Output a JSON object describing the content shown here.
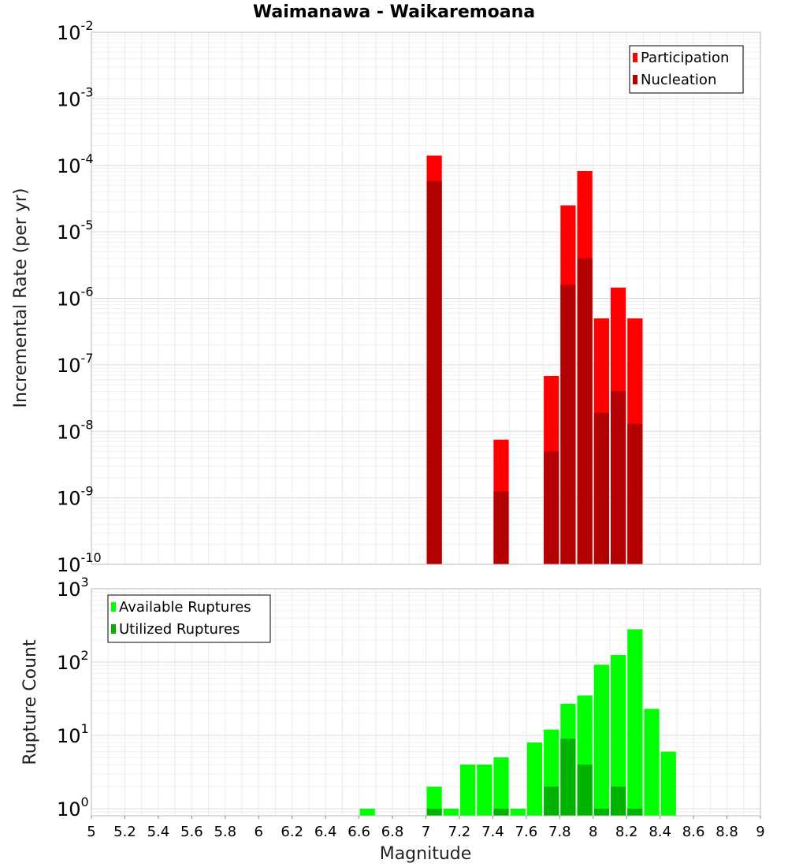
{
  "chart_data": [
    {
      "type": "bar",
      "title": "Waimanawa - Waikaremoana",
      "xlabel": "Magnitude",
      "ylabel": "Incremental Rate (per yr)",
      "yscale": "log",
      "xlim": [
        5,
        9
      ],
      "ylim": [
        1e-10,
        0.01
      ],
      "y_tick_exponents": [
        -10,
        -9,
        -8,
        -7,
        -6,
        -5,
        -4,
        -3,
        -2
      ],
      "grid": true,
      "legend_position": "top-right",
      "bin_width": 0.1,
      "series": [
        {
          "name": "Participation",
          "color": "#ff0000",
          "points": [
            {
              "x": 7.05,
              "y": 0.00014
            },
            {
              "x": 7.45,
              "y": 7.5e-09
            },
            {
              "x": 7.75,
              "y": 6.8e-08
            },
            {
              "x": 7.85,
              "y": 2.5e-05
            },
            {
              "x": 7.95,
              "y": 8.2e-05
            },
            {
              "x": 8.05,
              "y": 5e-07
            },
            {
              "x": 8.15,
              "y": 1.45e-06
            },
            {
              "x": 8.25,
              "y": 5e-07
            }
          ]
        },
        {
          "name": "Nucleation",
          "color": "#b30000",
          "points": [
            {
              "x": 7.05,
              "y": 5.8e-05
            },
            {
              "x": 7.45,
              "y": 1.25e-09
            },
            {
              "x": 7.75,
              "y": 5e-09
            },
            {
              "x": 7.85,
              "y": 1.6e-06
            },
            {
              "x": 7.95,
              "y": 4e-06
            },
            {
              "x": 8.05,
              "y": 1.9e-08
            },
            {
              "x": 8.15,
              "y": 4e-08
            },
            {
              "x": 8.25,
              "y": 1.3e-08
            }
          ]
        }
      ]
    },
    {
      "type": "bar",
      "xlabel": "Magnitude",
      "ylabel": "Rupture Count",
      "yscale": "log",
      "xlim": [
        5,
        9
      ],
      "ylim": [
        0.8,
        1000
      ],
      "y_tick_exponents": [
        0,
        1,
        2,
        3
      ],
      "x_ticks": [
        "5",
        "5.2",
        "5.4",
        "5.6",
        "5.8",
        "6",
        "6.2",
        "6.4",
        "6.6",
        "6.8",
        "7",
        "7.2",
        "7.4",
        "7.6",
        "7.8",
        "8",
        "8.2",
        "8.4",
        "8.6",
        "8.8",
        "9"
      ],
      "grid": true,
      "legend_position": "top-left",
      "bin_width": 0.1,
      "series": [
        {
          "name": "Available Ruptures",
          "color": "#00ff00",
          "points": [
            {
              "x": 6.65,
              "y": 1
            },
            {
              "x": 7.05,
              "y": 2
            },
            {
              "x": 7.15,
              "y": 1
            },
            {
              "x": 7.25,
              "y": 4
            },
            {
              "x": 7.35,
              "y": 4
            },
            {
              "x": 7.45,
              "y": 5
            },
            {
              "x": 7.55,
              "y": 1
            },
            {
              "x": 7.65,
              "y": 8
            },
            {
              "x": 7.75,
              "y": 12
            },
            {
              "x": 7.85,
              "y": 27
            },
            {
              "x": 7.95,
              "y": 35
            },
            {
              "x": 8.05,
              "y": 92
            },
            {
              "x": 8.15,
              "y": 125
            },
            {
              "x": 8.25,
              "y": 280
            },
            {
              "x": 8.35,
              "y": 23
            },
            {
              "x": 8.45,
              "y": 6
            }
          ]
        },
        {
          "name": "Utilized Ruptures",
          "color": "#00b300",
          "points": [
            {
              "x": 7.05,
              "y": 1
            },
            {
              "x": 7.45,
              "y": 1
            },
            {
              "x": 7.75,
              "y": 2
            },
            {
              "x": 7.85,
              "y": 9
            },
            {
              "x": 7.95,
              "y": 4
            },
            {
              "x": 8.05,
              "y": 1
            },
            {
              "x": 8.15,
              "y": 2
            },
            {
              "x": 8.25,
              "y": 1
            }
          ]
        }
      ]
    }
  ]
}
